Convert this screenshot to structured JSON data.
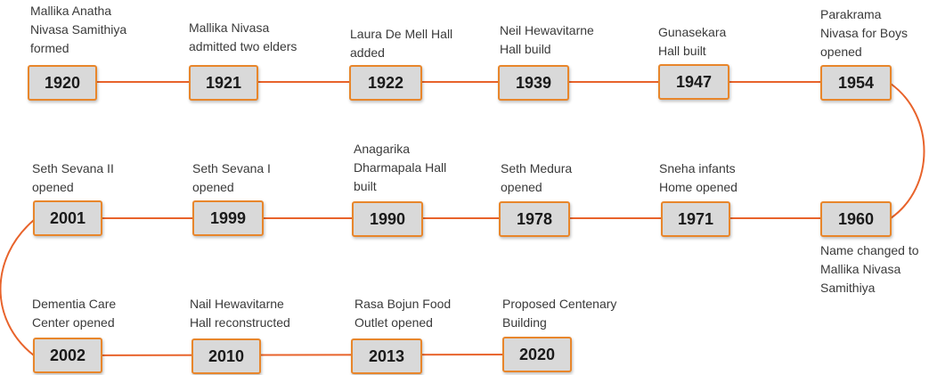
{
  "colors": {
    "line": "#e8632b",
    "box_border": "#e8862b",
    "box_fill": "#d9d9d9",
    "text": "#3a3a3a"
  },
  "milestones": [
    {
      "year": "1920",
      "label": "Mallika Anatha\nNivasa Samithiya\nformed"
    },
    {
      "year": "1921",
      "label": "Mallika Nivasa\nadmitted two elders"
    },
    {
      "year": "1922",
      "label": "Laura De Mell Hall\nadded"
    },
    {
      "year": "1939",
      "label": "Neil Hewavitarne\nHall build"
    },
    {
      "year": "1947",
      "label": "Gunasekara\nHall built"
    },
    {
      "year": "1954",
      "label": "Parakrama\nNivasa for Boys\nopened"
    },
    {
      "year": "1960",
      "label": "Name changed to\nMallika Nivasa\nSamithiya"
    },
    {
      "year": "1971",
      "label": "Sneha infants\nHome opened"
    },
    {
      "year": "1978",
      "label": "Seth Medura\nopened"
    },
    {
      "year": "1990",
      "label": "Anagarika\nDharmapala Hall\nbuilt"
    },
    {
      "year": "1999",
      "label": "Seth Sevana I\nopened"
    },
    {
      "year": "2001",
      "label": "Seth Sevana II\nopened"
    },
    {
      "year": "2002",
      "label": "Dementia Care\nCenter opened"
    },
    {
      "year": "2010",
      "label": "Nail Hewavitarne\nHall reconstructed"
    },
    {
      "year": "2013",
      "label": "Rasa Bojun Food\nOutlet opened"
    },
    {
      "year": "2020",
      "label": "Proposed Centenary\nBuilding"
    }
  ]
}
